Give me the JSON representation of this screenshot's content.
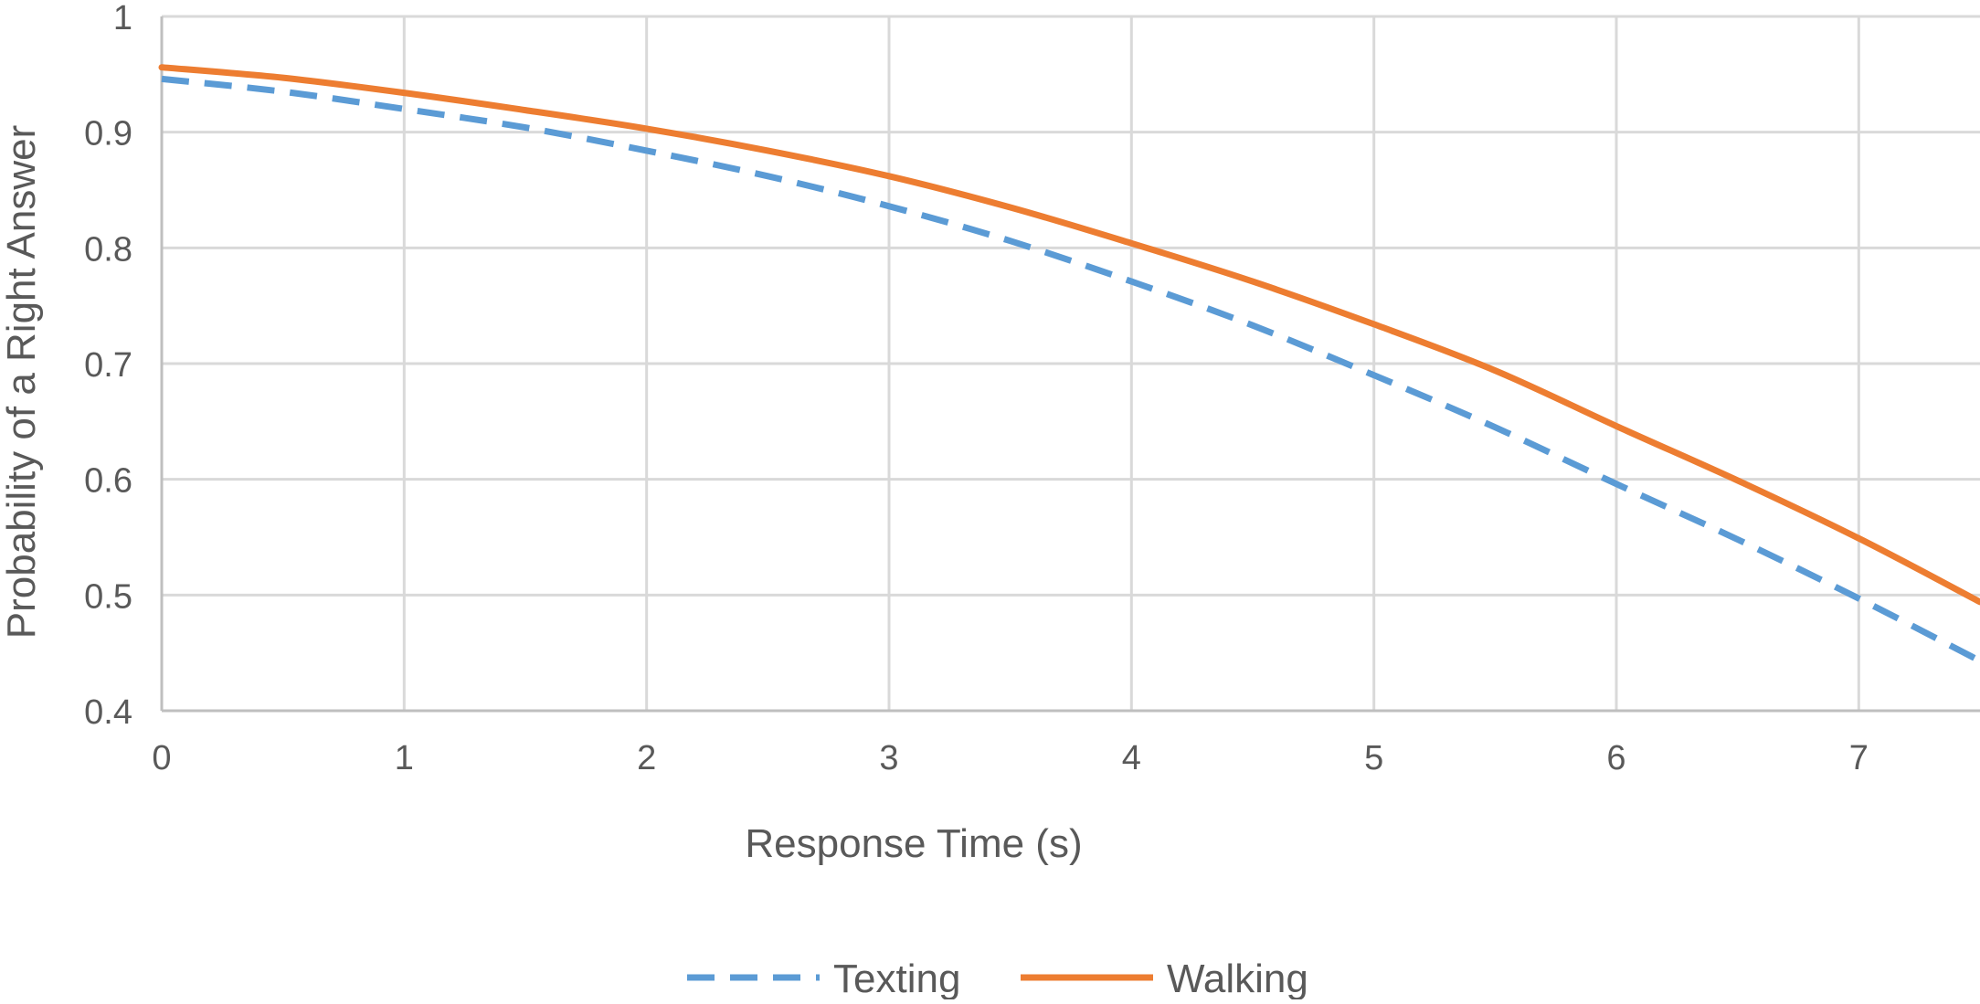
{
  "chart_data": {
    "type": "line",
    "title": "",
    "xlabel": "Response Time (s)",
    "ylabel": "Probability of a Right Answer",
    "xlim": [
      0,
      7.5
    ],
    "ylim": [
      0.4,
      1
    ],
    "x_ticks": [
      0,
      1,
      2,
      3,
      4,
      5,
      6,
      7
    ],
    "y_ticks": [
      0.4,
      0.5,
      0.6,
      0.7,
      0.8,
      0.9,
      1
    ],
    "y_tick_labels": [
      "0.4",
      "0.5",
      "0.6",
      "0.7",
      "0.8",
      "0.9",
      "1"
    ],
    "grid": true,
    "legend_position": "bottom",
    "x": [
      0,
      0.5,
      1,
      1.5,
      2,
      2.5,
      3,
      3.5,
      4,
      4.5,
      5,
      5.5,
      6,
      6.5,
      7,
      7.5
    ],
    "series": [
      {
        "name": "Texting",
        "color": "#5B9BD5",
        "line_style": "dashed",
        "values": [
          0.946,
          0.935,
          0.92,
          0.904,
          0.884,
          0.862,
          0.836,
          0.806,
          0.771,
          0.733,
          0.69,
          0.645,
          0.596,
          0.548,
          0.497,
          0.443
        ]
      },
      {
        "name": "Walking",
        "color": "#ED7D31",
        "line_style": "solid",
        "values": [
          0.956,
          0.947,
          0.934,
          0.919,
          0.903,
          0.884,
          0.862,
          0.835,
          0.804,
          0.771,
          0.734,
          0.694,
          0.646,
          0.599,
          0.549,
          0.494
        ]
      }
    ]
  }
}
